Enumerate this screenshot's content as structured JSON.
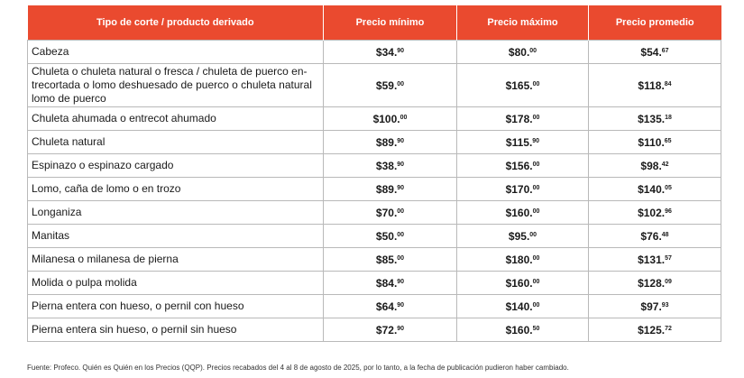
{
  "table": {
    "headers": [
      "Tipo de corte / producto derivado",
      "Precio mínimo",
      "Precio máximo",
      "Precio promedio"
    ],
    "rows": [
      {
        "cut": "Cabeza",
        "min": {
          "int": "$34.",
          "dec": "90"
        },
        "max": {
          "int": "$80.",
          "dec": "00"
        },
        "avg": {
          "int": "$54.",
          "dec": "67"
        }
      },
      {
        "cut": "Chuleta o chuleta natural o fresca / chuleta de puerco en-tre­cortada o lomo deshuesado de puerco  o chuleta natural lomo de puerco",
        "min": {
          "int": "$59.",
          "dec": "00"
        },
        "max": {
          "int": "$165.",
          "dec": "00"
        },
        "avg": {
          "int": "$118.",
          "dec": "84"
        }
      },
      {
        "cut": "Chuleta ahumada o entrecot ahumado",
        "min": {
          "int": "$100.",
          "dec": "00"
        },
        "max": {
          "int": "$178.",
          "dec": "00"
        },
        "avg": {
          "int": "$135.",
          "dec": "18"
        }
      },
      {
        "cut": "Chuleta natural",
        "min": {
          "int": "$89.",
          "dec": "90"
        },
        "max": {
          "int": "$115.",
          "dec": "90"
        },
        "avg": {
          "int": "$110.",
          "dec": "65"
        }
      },
      {
        "cut": "Espinazo o espinazo cargado",
        "min": {
          "int": "$38.",
          "dec": "90"
        },
        "max": {
          "int": "$156.",
          "dec": "00"
        },
        "avg": {
          "int": "$98.",
          "dec": "42"
        }
      },
      {
        "cut": "Lomo, caña de lomo o en trozo",
        "min": {
          "int": "$89.",
          "dec": "90"
        },
        "max": {
          "int": "$170.",
          "dec": "00"
        },
        "avg": {
          "int": "$140.",
          "dec": "05"
        }
      },
      {
        "cut": "Longaniza",
        "min": {
          "int": "$70.",
          "dec": "00"
        },
        "max": {
          "int": "$160.",
          "dec": "00"
        },
        "avg": {
          "int": "$102.",
          "dec": "96"
        }
      },
      {
        "cut": "Manitas",
        "min": {
          "int": "$50.",
          "dec": "00"
        },
        "max": {
          "int": "$95.",
          "dec": "00"
        },
        "avg": {
          "int": "$76.",
          "dec": "48"
        }
      },
      {
        "cut": "Milanesa o milanesa de pierna",
        "min": {
          "int": "$85.",
          "dec": "00"
        },
        "max": {
          "int": "$180.",
          "dec": "00"
        },
        "avg": {
          "int": "$131.",
          "dec": "57"
        }
      },
      {
        "cut": "Molida o pulpa molida",
        "min": {
          "int": "$84.",
          "dec": "90"
        },
        "max": {
          "int": "$160.",
          "dec": "00"
        },
        "avg": {
          "int": "$128.",
          "dec": "09"
        }
      },
      {
        "cut": "Pierna entera con hueso, o pernil con hueso",
        "min": {
          "int": "$64.",
          "dec": "90"
        },
        "max": {
          "int": "$140.",
          "dec": "00"
        },
        "avg": {
          "int": "$97.",
          "dec": "93"
        }
      },
      {
        "cut": "Pierna entera sin hueso, o pernil sin hueso",
        "min": {
          "int": "$72.",
          "dec": "90"
        },
        "max": {
          "int": "$160.",
          "dec": "50"
        },
        "avg": {
          "int": "$125.",
          "dec": "72"
        }
      }
    ]
  },
  "source_note": "Fuente: Profeco. Quién es Quién en los Precios (QQP). Precios recabados del 4 al 8 de agosto de 2025, por lo tanto, a la fecha de publicación pudieron haber cambiado.",
  "colors": {
    "header_background": "#ea4a2f",
    "header_text": "#ffffff",
    "border": "#b9b9b9"
  }
}
